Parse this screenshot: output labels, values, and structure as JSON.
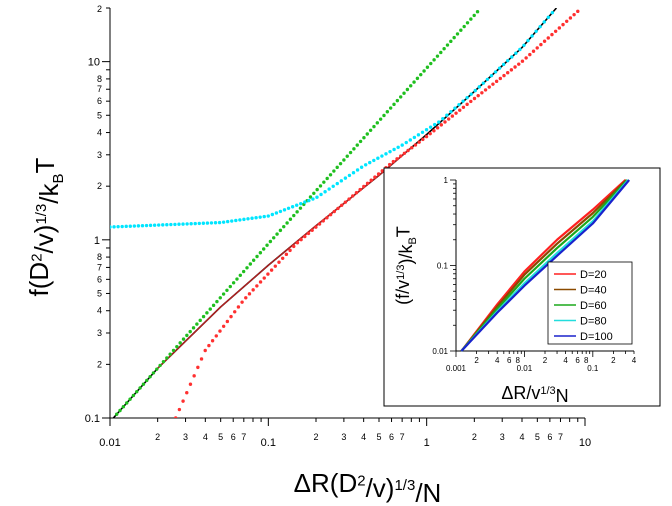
{
  "chart_data": [
    {
      "type": "scatter",
      "xlabel_parts": [
        "ΔR(D",
        "2",
        "/v)",
        "1/3",
        "/N"
      ],
      "ylabel_parts": [
        "f(D",
        "2",
        "/v)",
        "1/3",
        "/k",
        "B",
        "T"
      ],
      "xscale": "log",
      "yscale": "log",
      "xlim": [
        0.01,
        10
      ],
      "ylim": [
        0.1,
        20
      ],
      "x_ticks_major": [
        {
          "v": 0.01,
          "label": "0.01"
        },
        {
          "v": 0.1,
          "label": "0.1"
        },
        {
          "v": 1,
          "label": "1"
        },
        {
          "v": 10,
          "label": "10"
        }
      ],
      "x_ticks_minor_labels": [
        "2",
        "3",
        "4",
        "5",
        "6",
        "7"
      ],
      "y_ticks_major": [
        {
          "v": 0.1,
          "label": "0.1"
        },
        {
          "v": 1,
          "label": "1"
        },
        {
          "v": 10,
          "label": "10"
        }
      ],
      "y_ticks_minor_labels": [
        "2",
        "3",
        "4",
        "5",
        "6",
        "7",
        "8"
      ],
      "y_top_label": "2",
      "series": [
        {
          "color": "#000000",
          "style": "solid",
          "points": [
            [
              0.0105,
              0.1
            ],
            [
              0.02,
              0.19
            ],
            [
              0.05,
              0.42
            ],
            [
              0.1,
              0.72
            ],
            [
              0.2,
              1.2
            ],
            [
              0.5,
              2.3
            ],
            [
              1,
              3.9
            ],
            [
              2,
              6.8
            ],
            [
              4,
              12
            ],
            [
              6.6,
              20
            ]
          ]
        },
        {
          "color": "#b02020",
          "style": "solid",
          "points": [
            [
              0.02,
              0.19
            ],
            [
              0.05,
              0.42
            ],
            [
              0.1,
              0.72
            ],
            [
              0.2,
              1.2
            ],
            [
              0.5,
              2.3
            ],
            [
              0.8,
              3.3
            ]
          ]
        },
        {
          "color": "#1fbf1f",
          "style": "dotted",
          "points": [
            [
              0.0105,
              0.1
            ],
            [
              0.1,
              0.95
            ],
            [
              1,
              9.2
            ],
            [
              2.2,
              20
            ]
          ]
        },
        {
          "color": "#ff3030",
          "style": "dotted",
          "points": [
            [
              0.026,
              0.1
            ],
            [
              0.04,
              0.24
            ],
            [
              0.07,
              0.46
            ],
            [
              0.15,
              0.95
            ],
            [
              0.3,
              1.6
            ],
            [
              0.6,
              2.7
            ],
            [
              1,
              3.8
            ],
            [
              2,
              6.2
            ],
            [
              4,
              10
            ],
            [
              9.5,
              20
            ]
          ]
        },
        {
          "color": "#00e5ff",
          "style": "dotted",
          "points": [
            [
              0.01,
              1.18
            ],
            [
              0.05,
              1.25
            ],
            [
              0.1,
              1.36
            ],
            [
              0.2,
              1.72
            ],
            [
              0.4,
              2.6
            ],
            [
              0.7,
              3.4
            ],
            [
              1.2,
              4.6
            ],
            [
              2,
              6.8
            ],
            [
              4,
              12
            ],
            [
              6.6,
              20
            ]
          ]
        }
      ]
    },
    {
      "type": "line",
      "title": "",
      "xlabel_parts": [
        "ΔR/v",
        "1/3",
        "N"
      ],
      "ylabel_parts": [
        "(f/v",
        "1/3",
        ")/k",
        "B",
        "T"
      ],
      "xscale": "log",
      "yscale": "log",
      "xlim": [
        0.001,
        0.4
      ],
      "ylim": [
        0.01,
        1
      ],
      "x_ticks_major": [
        {
          "v": 0.001,
          "label": "0.001"
        },
        {
          "v": 0.01,
          "label": "0.01"
        },
        {
          "v": 0.1,
          "label": "0.1"
        }
      ],
      "x_ticks_minor_labels": [
        "2",
        "4",
        "6",
        "8"
      ],
      "y_ticks_major": [
        {
          "v": 0.01,
          "label": "0.01"
        },
        {
          "v": 0.1,
          "label": "0.1"
        },
        {
          "v": 1,
          "label": "1"
        }
      ],
      "legend_position": "bottom-right",
      "series": [
        {
          "name": "D=20",
          "color": "#ff2020",
          "points": [
            [
              0.0012,
              0.01
            ],
            [
              0.004,
              0.035
            ],
            [
              0.01,
              0.085
            ],
            [
              0.03,
              0.2
            ],
            [
              0.1,
              0.45
            ],
            [
              0.3,
              1.0
            ]
          ]
        },
        {
          "name": "D=40",
          "color": "#8b4a00",
          "points": [
            [
              0.0012,
              0.01
            ],
            [
              0.004,
              0.033
            ],
            [
              0.01,
              0.078
            ],
            [
              0.03,
              0.18
            ],
            [
              0.1,
              0.41
            ],
            [
              0.31,
              1.0
            ]
          ]
        },
        {
          "name": "D=60",
          "color": "#1ca81c",
          "points": [
            [
              0.0012,
              0.01
            ],
            [
              0.004,
              0.031
            ],
            [
              0.01,
              0.07
            ],
            [
              0.03,
              0.16
            ],
            [
              0.1,
              0.37
            ],
            [
              0.32,
              1.0
            ]
          ]
        },
        {
          "name": "D=80",
          "color": "#22dddd",
          "points": [
            [
              0.0012,
              0.01
            ],
            [
              0.004,
              0.029
            ],
            [
              0.01,
              0.062
            ],
            [
              0.03,
              0.14
            ],
            [
              0.1,
              0.33
            ],
            [
              0.33,
              1.0
            ]
          ]
        },
        {
          "name": "D=100",
          "color": "#1a22cc",
          "points": [
            [
              0.0012,
              0.01
            ],
            [
              0.004,
              0.028
            ],
            [
              0.01,
              0.058
            ],
            [
              0.03,
              0.13
            ],
            [
              0.1,
              0.31
            ],
            [
              0.34,
              1.0
            ]
          ]
        }
      ]
    }
  ]
}
